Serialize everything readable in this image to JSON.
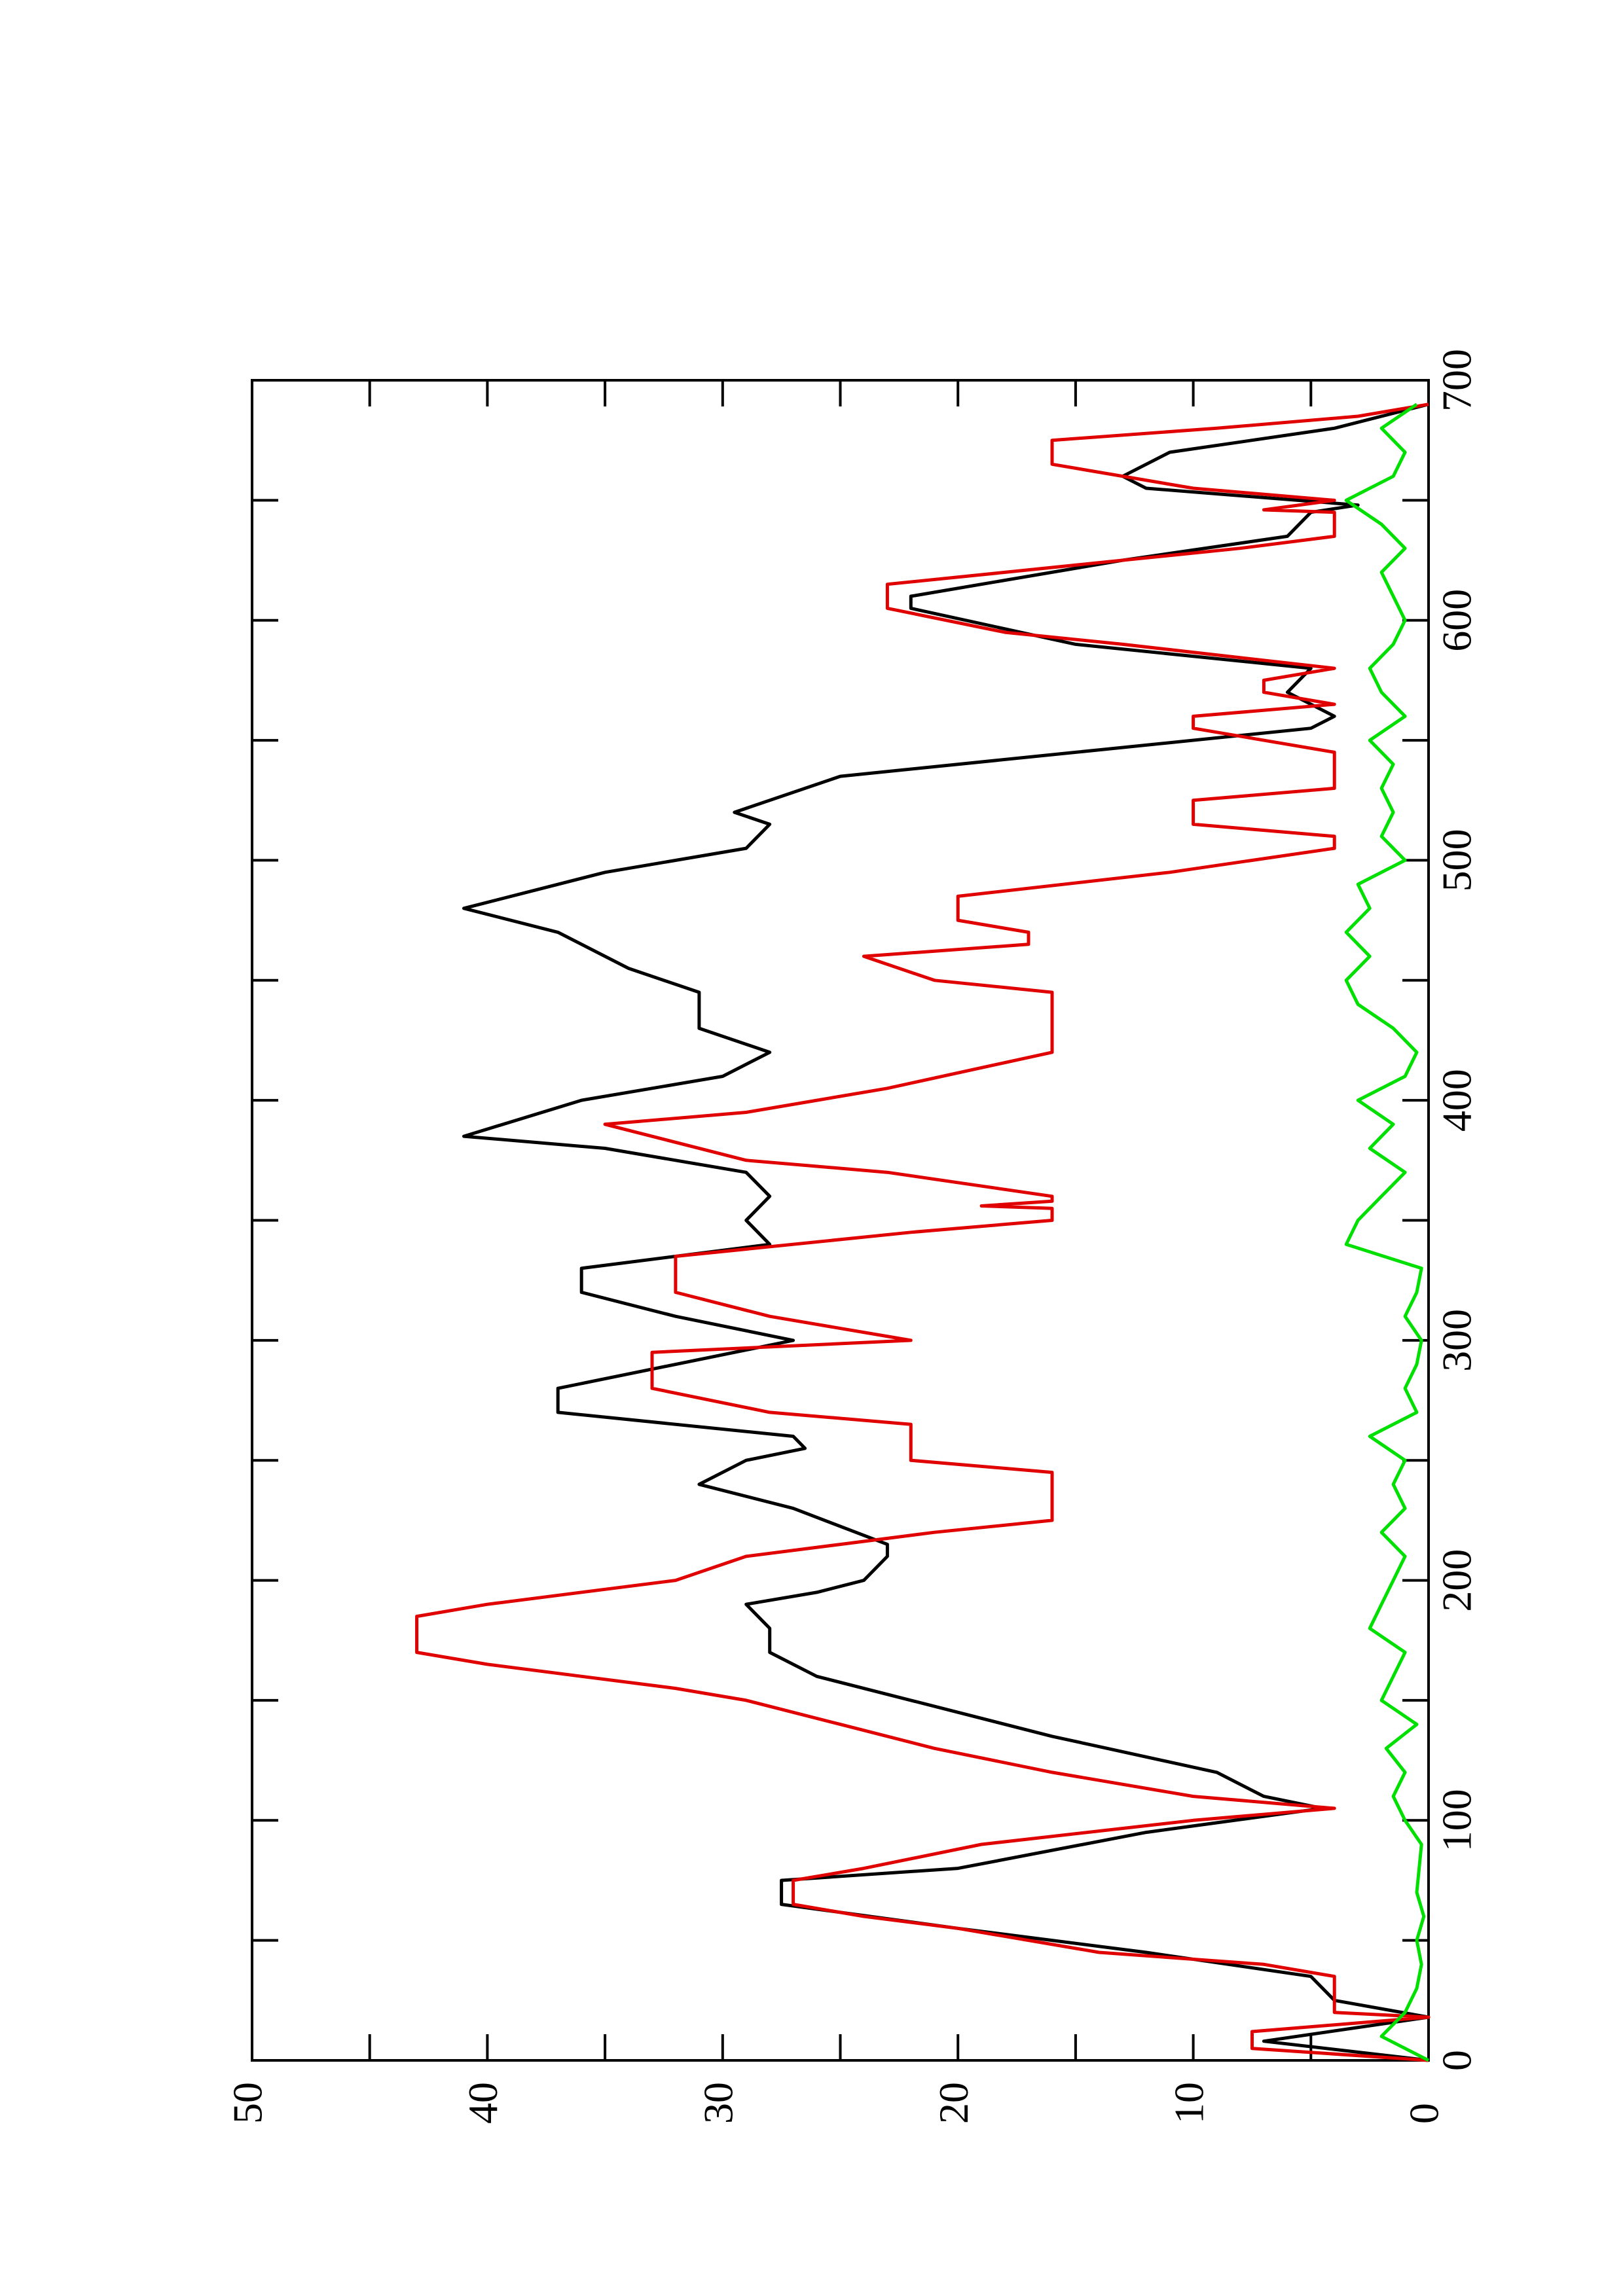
{
  "chart_data": {
    "type": "line",
    "xlim": [
      0,
      700
    ],
    "xticks": [
      0,
      100,
      200,
      300,
      400,
      500,
      600,
      700
    ],
    "xminorticks": [
      50,
      150,
      250,
      350,
      450,
      550,
      650
    ],
    "ylim": [
      0,
      50
    ],
    "yticks": [
      0,
      10,
      20,
      30,
      40,
      50
    ],
    "yminorticks": [
      5,
      15,
      25,
      35,
      45
    ],
    "series": [
      {
        "color": "#000000",
        "x": [
          0,
          8,
          18,
          25,
          35,
          45,
          55,
          65,
          75,
          80,
          95,
          105,
          110,
          120,
          135,
          150,
          160,
          170,
          180,
          190,
          195,
          200,
          210,
          215,
          230,
          240,
          250,
          255,
          260,
          270,
          280,
          300,
          310,
          320,
          330,
          340,
          350,
          360,
          370,
          380,
          385,
          400,
          410,
          420,
          430,
          445,
          455,
          470,
          480,
          495,
          505,
          515,
          520,
          535,
          545,
          555,
          560,
          570,
          580,
          590,
          605,
          610,
          625,
          635,
          645,
          648,
          655,
          660,
          670,
          680,
          690
        ],
        "values": [
          0,
          7,
          0,
          4,
          5,
          12,
          20,
          27.5,
          27.5,
          20,
          12,
          4.5,
          7,
          9,
          16,
          22,
          26,
          28,
          28,
          29,
          26,
          24,
          23,
          23,
          27,
          31,
          29,
          26.5,
          27,
          37,
          37,
          27,
          32,
          36,
          36,
          28,
          29,
          28,
          29,
          35,
          41,
          36,
          30,
          28,
          31,
          31,
          34,
          37,
          41,
          35,
          29,
          28,
          29.5,
          25,
          15,
          5,
          4,
          6,
          5,
          15,
          22,
          22,
          13,
          6,
          5,
          3,
          12,
          13,
          11,
          4,
          0
        ]
      },
      {
        "color": "#e00000",
        "x": [
          0,
          5,
          12,
          18,
          20,
          35,
          40,
          45,
          55,
          60,
          65,
          75,
          80,
          90,
          100,
          105,
          110,
          120,
          130,
          140,
          150,
          155,
          165,
          170,
          185,
          190,
          200,
          210,
          215,
          220,
          225,
          245,
          250,
          265,
          270,
          280,
          295,
          300,
          310,
          320,
          335,
          345,
          350,
          355,
          356,
          358,
          360,
          370,
          375,
          390,
          395,
          405,
          420,
          445,
          450,
          460,
          465,
          470,
          475,
          485,
          495,
          505,
          510,
          515,
          525,
          530,
          545,
          555,
          560,
          565,
          570,
          575,
          580,
          590,
          595,
          605,
          615,
          620,
          625,
          630,
          635,
          645,
          646,
          650,
          655,
          665,
          675,
          680,
          685,
          690
        ],
        "values": [
          0,
          7.5,
          7.5,
          0,
          4,
          4,
          7,
          14,
          20,
          24,
          27,
          27,
          24,
          19,
          10,
          4,
          10,
          16,
          21,
          25,
          29,
          32,
          40,
          43,
          43,
          40,
          32,
          29,
          25,
          21,
          16,
          16,
          22,
          22,
          28,
          33,
          33,
          22,
          28,
          32,
          32,
          22,
          16,
          16,
          19,
          16,
          16,
          23,
          29,
          35,
          29,
          23,
          16,
          16,
          21,
          24,
          17,
          17,
          20,
          20,
          11,
          4,
          4,
          10,
          10,
          4,
          4,
          10,
          10,
          4,
          7,
          7,
          4,
          13,
          18,
          23,
          23,
          18,
          13,
          8,
          4,
          4,
          7,
          4,
          10,
          16,
          16,
          9,
          3,
          0
        ]
      },
      {
        "color": "#00e000",
        "x": [
          0,
          10,
          20,
          30,
          40,
          50,
          60,
          70,
          80,
          90,
          100,
          110,
          120,
          130,
          140,
          150,
          160,
          170,
          180,
          190,
          200,
          210,
          220,
          230,
          240,
          250,
          260,
          270,
          280,
          290,
          300,
          310,
          320,
          330,
          340,
          350,
          360,
          370,
          380,
          390,
          400,
          410,
          420,
          430,
          440,
          450,
          460,
          470,
          480,
          490,
          500,
          510,
          520,
          530,
          540,
          550,
          560,
          570,
          580,
          590,
          600,
          610,
          620,
          630,
          640,
          650,
          660,
          670,
          680,
          690
        ],
        "values": [
          0,
          2,
          1,
          0.5,
          0.3,
          0.5,
          0.2,
          0.5,
          0.4,
          0.3,
          1,
          1.5,
          1,
          1.8,
          0.5,
          2,
          1.5,
          1,
          2.5,
          2,
          1.5,
          1,
          2,
          1,
          1.5,
          1,
          2.5,
          0.5,
          1,
          0.5,
          0.3,
          1,
          0.5,
          0.3,
          3.5,
          3,
          2,
          1,
          2.5,
          1.5,
          3,
          1,
          0.5,
          1.5,
          3,
          3.5,
          2.5,
          3.5,
          2.5,
          3,
          1,
          2,
          1.5,
          2,
          1.5,
          2.5,
          1,
          2,
          2.5,
          1.5,
          1,
          1.5,
          2,
          1,
          2,
          3.5,
          1.5,
          1,
          2,
          0.5
        ]
      }
    ]
  }
}
